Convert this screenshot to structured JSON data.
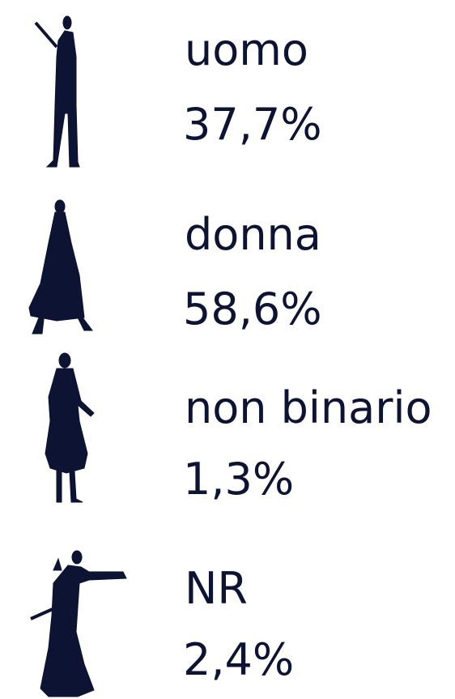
{
  "items": [
    {
      "label": "uomo",
      "value": "37,7%"
    },
    {
      "label": "donna",
      "value": "58,6%"
    },
    {
      "label": "non binario",
      "value": "1,3%"
    },
    {
      "label": "NR",
      "value": "2,4%"
    }
  ]
}
